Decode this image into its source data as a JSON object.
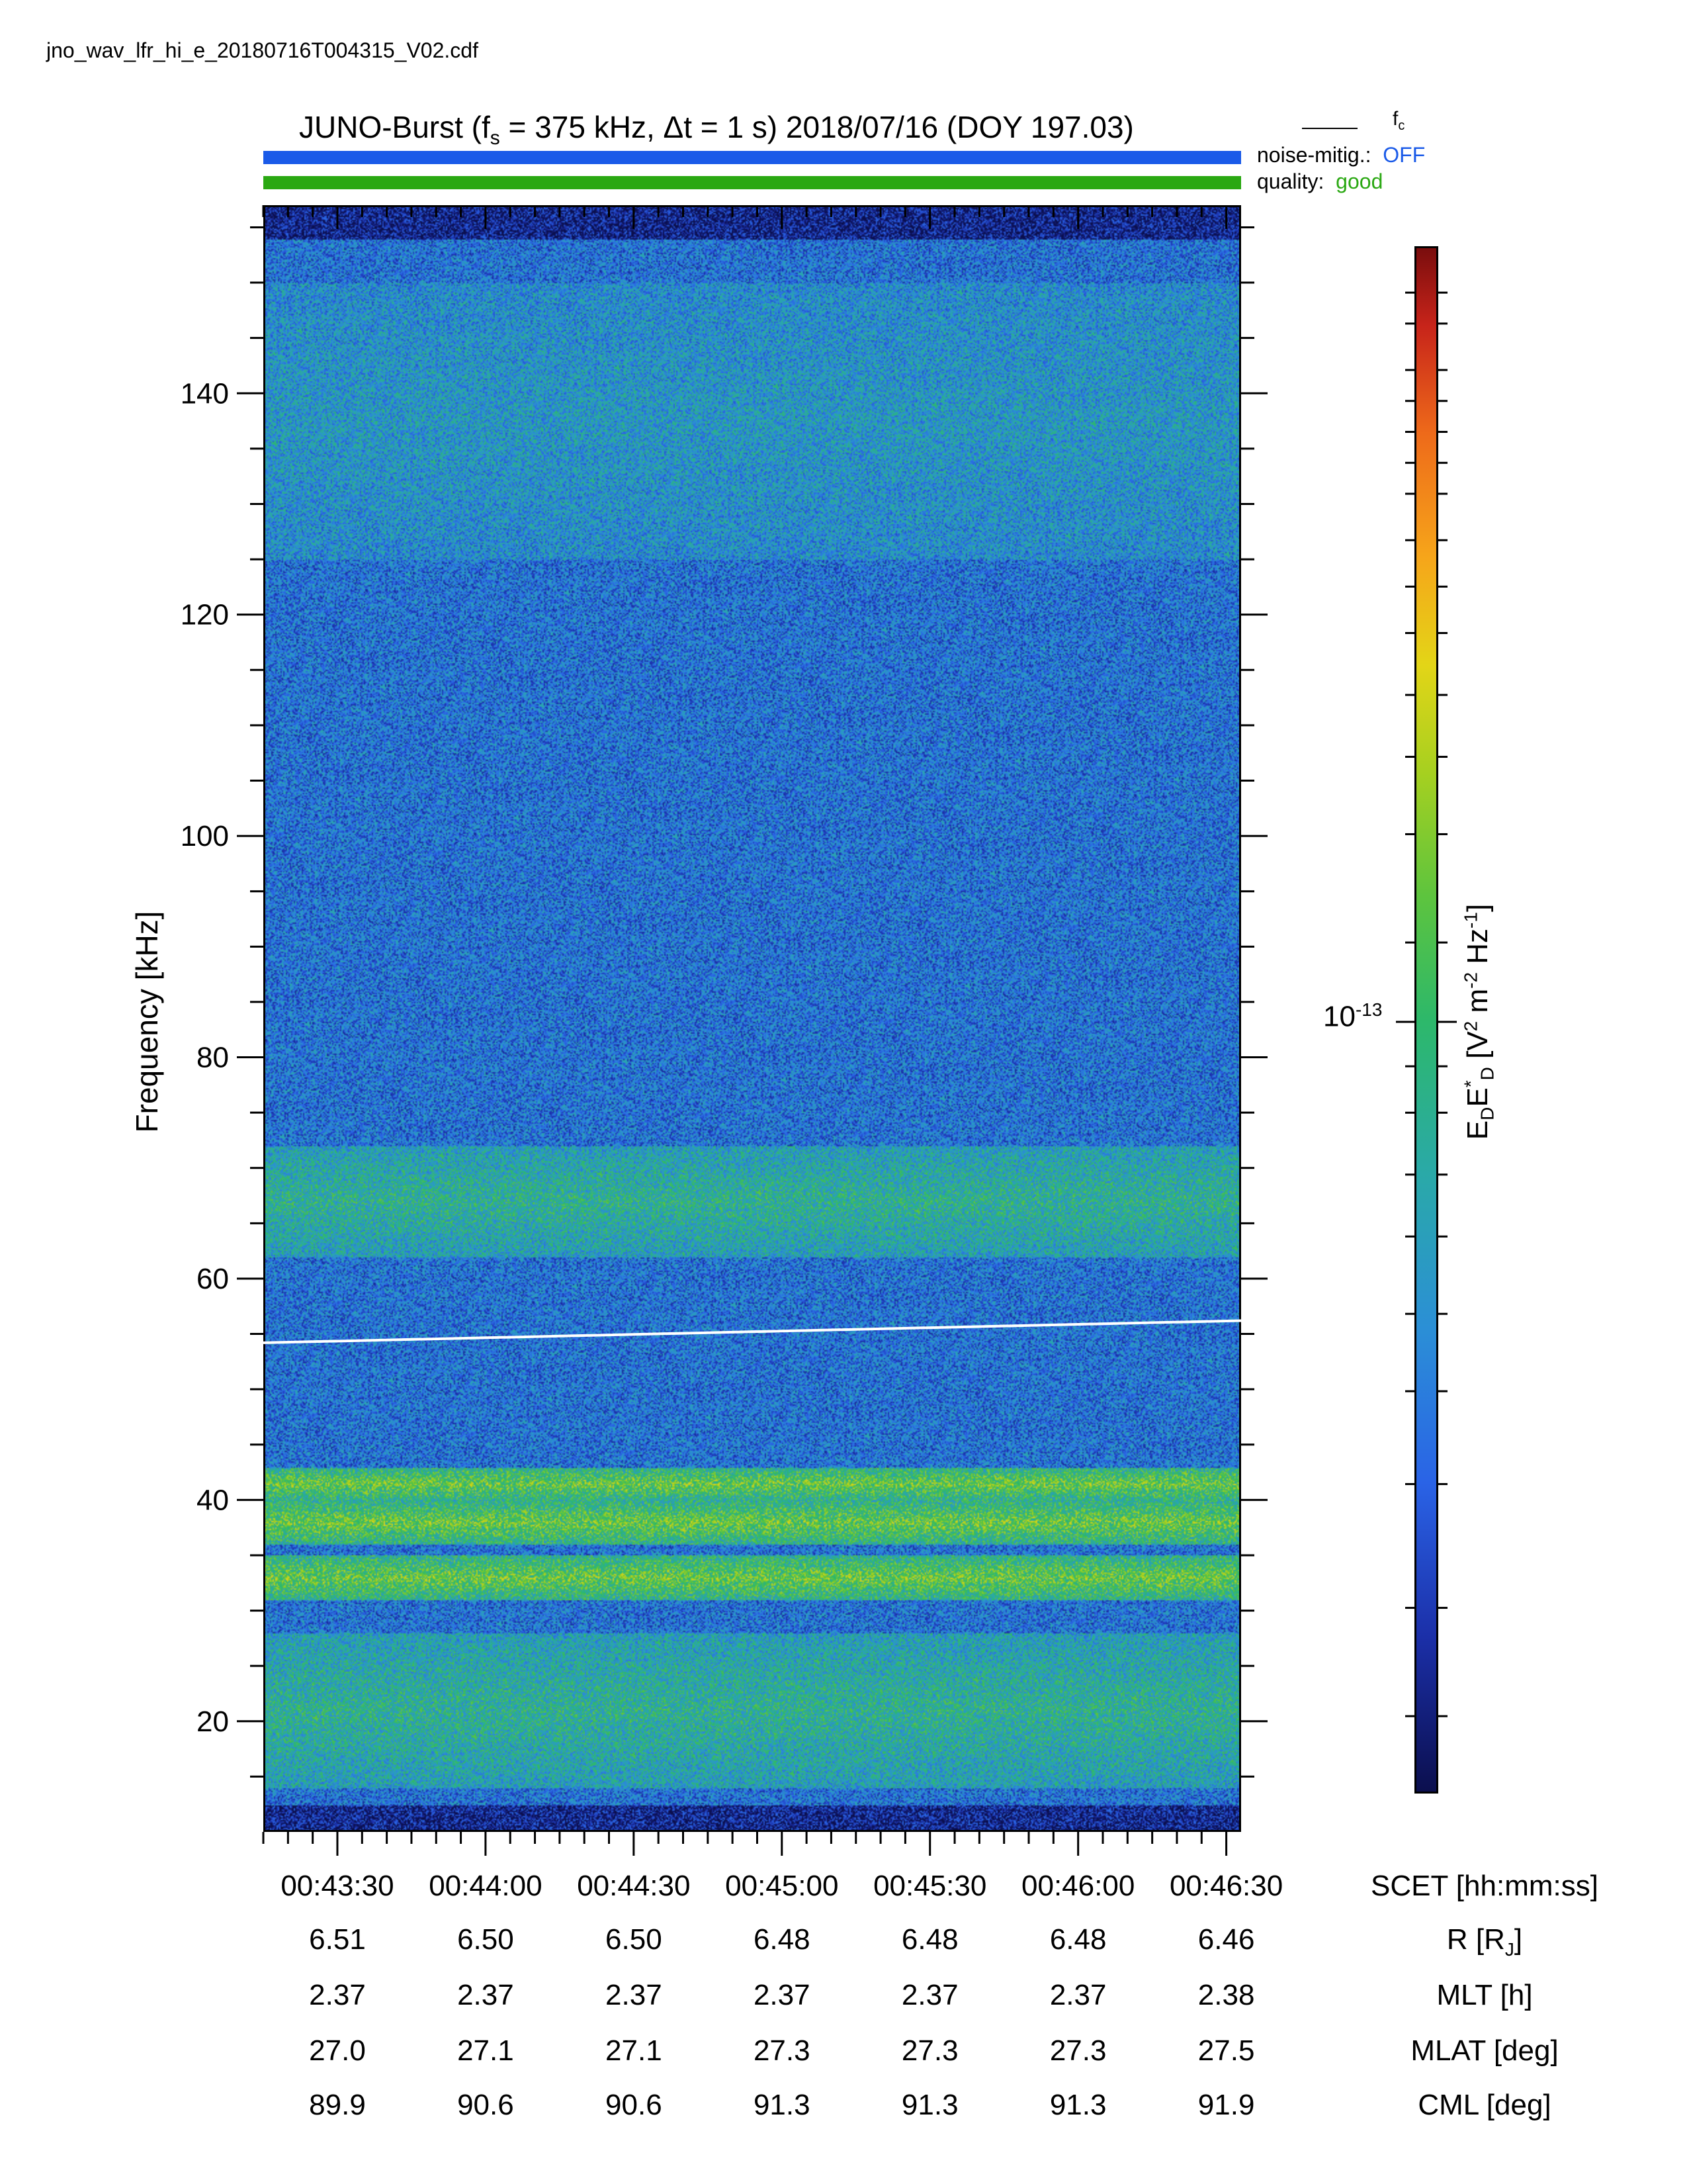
{
  "filename": "jno_wav_lfr_hi_e_20180716T004315_V02.cdf",
  "header": {
    "title_prefix": "JUNO-Burst (f",
    "title_sub": "s",
    "title_suffix": " = 375 kHz, Δt = 1 s)  2018/07/16 (DOY 197.03)",
    "fc_label_main": "f",
    "fc_label_sub": "c",
    "noise_label": "noise-mitig.:",
    "noise_value": "OFF",
    "quality_label": "quality:",
    "quality_value": "good"
  },
  "colors": {
    "noise_bar": "#1a5ae8",
    "noise_value": "#1a5ae8",
    "quality_bar": "#2aa812",
    "quality_value": "#2aa812",
    "fc_line": "#ffffff"
  },
  "chart_data": {
    "type": "heatmap",
    "ylabel": "Frequency [kHz]",
    "ylim": [
      10,
      157
    ],
    "yticks": [
      20,
      40,
      60,
      80,
      100,
      120,
      140
    ],
    "xlabel": "SCET [hh:mm:ss]",
    "xlim_seconds_after_004315": [
      0,
      198
    ],
    "xticks": [
      "00:43:30",
      "00:44:00",
      "00:44:30",
      "00:45:00",
      "00:45:30",
      "00:46:00",
      "00:46:30"
    ],
    "colorbar": {
      "label_main": "E",
      "label_sub1": "D",
      "label_mid": "E",
      "label_sup1": "*",
      "label_sub2": "D",
      "label_units_a": " [V",
      "label_sup2": "2",
      "label_units_b": " m",
      "label_sup3": "-2",
      "label_units_c": " Hz",
      "label_sup4": "-1",
      "label_units_d": "]",
      "tick_base": "10",
      "tick_exp": "-13",
      "scale": "log"
    },
    "fc_curve": {
      "name": "f_c",
      "x": [
        "00:43:15",
        "00:46:33"
      ],
      "y_khz": [
        54.2,
        56.2
      ]
    },
    "emission_bands_khz": [
      {
        "low": 62,
        "high": 72,
        "level": "moderate"
      },
      {
        "low": 40,
        "high": 43,
        "level": "strong"
      },
      {
        "low": 36,
        "high": 40,
        "level": "strong"
      },
      {
        "low": 31,
        "high": 35,
        "level": "strong"
      },
      {
        "low": 14,
        "high": 28,
        "level": "moderate"
      },
      {
        "low": 125,
        "high": 150,
        "level": "weak"
      }
    ],
    "ephemeris": [
      {
        "name": "R",
        "name_sub": "J",
        "label": "R [R",
        "label_end": "]",
        "values": [
          "6.51",
          "6.50",
          "6.50",
          "6.48",
          "6.48",
          "6.48",
          "6.46"
        ]
      },
      {
        "label": "MLT [h]",
        "values": [
          "2.37",
          "2.37",
          "2.37",
          "2.37",
          "2.37",
          "2.37",
          "2.38"
        ]
      },
      {
        "label": "MLAT [deg]",
        "values": [
          "27.0",
          "27.1",
          "27.1",
          "27.3",
          "27.3",
          "27.3",
          "27.5"
        ]
      },
      {
        "label": "CML [deg]",
        "values": [
          "89.9",
          "90.6",
          "90.6",
          "91.3",
          "91.3",
          "91.3",
          "91.9"
        ]
      }
    ]
  }
}
